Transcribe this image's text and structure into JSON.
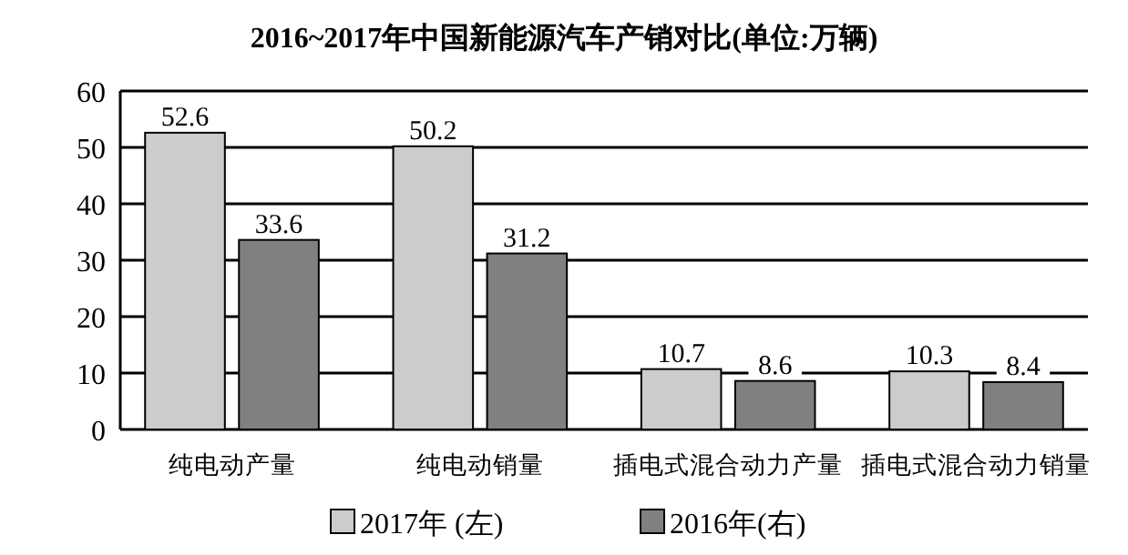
{
  "chart_data": {
    "type": "bar",
    "title": "2016~2017年中国新能源汽车产销对比(单位:万辆)",
    "categories": [
      "纯电动产量",
      "纯电动销量",
      "插电式混合动力产量",
      "插电式混合动力销量"
    ],
    "series": [
      {
        "name": "2017年 (左)",
        "color": "#cccccc",
        "values": [
          52.6,
          50.2,
          10.7,
          10.3
        ]
      },
      {
        "name": "2016年(右)",
        "color": "#808080",
        "values": [
          33.6,
          31.2,
          8.6,
          8.4
        ]
      }
    ],
    "ylim": [
      0,
      60
    ],
    "yticks": [
      0,
      10,
      20,
      30,
      40,
      50,
      60
    ],
    "grid": "y",
    "legend": "bottom",
    "data_labels": true
  }
}
